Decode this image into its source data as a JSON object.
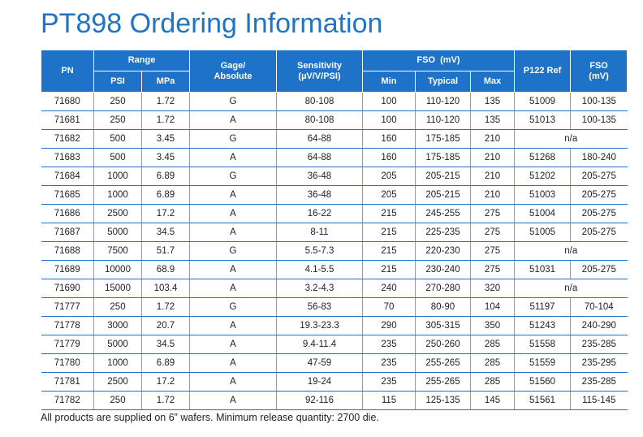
{
  "title": "PT898 Ordering Information",
  "headers": {
    "pn": "PN",
    "range": "Range",
    "psi": "PSI",
    "mpa": "MPa",
    "gage_line1": "Gage/",
    "gage_line2": "Absolute",
    "sens_line1": "Sensitivity",
    "sens_line2": "(µV/V/PSI)",
    "fso_group": "FSO  (mV)",
    "min": "Min",
    "typical": "Typical",
    "max": "Max",
    "p122": "P122 Ref",
    "fso_line1": "FSO",
    "fso_line2": "(mV)"
  },
  "rows": [
    {
      "pn": "71680",
      "psi": "250",
      "mpa": "1.72",
      "ga": "G",
      "sens": "80-108",
      "min": "100",
      "typ": "110-120",
      "max": "135",
      "ref": "51009",
      "fso": "100-135"
    },
    {
      "pn": "71681",
      "psi": "250",
      "mpa": "1.72",
      "ga": "A",
      "sens": "80-108",
      "min": "100",
      "typ": "110-120",
      "max": "135",
      "ref": "51013",
      "fso": "100-135"
    },
    {
      "pn": "71682",
      "psi": "500",
      "mpa": "3.45",
      "ga": "G",
      "sens": "64-88",
      "min": "160",
      "typ": "175-185",
      "max": "210",
      "na": "n/a"
    },
    {
      "pn": "71683",
      "psi": "500",
      "mpa": "3.45",
      "ga": "A",
      "sens": "64-88",
      "min": "160",
      "typ": "175-185",
      "max": "210",
      "ref": "51268",
      "fso": "180-240"
    },
    {
      "pn": "71684",
      "psi": "1000",
      "mpa": "6.89",
      "ga": "G",
      "sens": "36-48",
      "min": "205",
      "typ": "205-215",
      "max": "210",
      "ref": "51202",
      "fso": "205-275"
    },
    {
      "pn": "71685",
      "psi": "1000",
      "mpa": "6.89",
      "ga": "A",
      "sens": "36-48",
      "min": "205",
      "typ": "205-215",
      "max": "210",
      "ref": "51003",
      "fso": "205-275"
    },
    {
      "pn": "71686",
      "psi": "2500",
      "mpa": "17.2",
      "ga": "A",
      "sens": "16-22",
      "min": "215",
      "typ": "245-255",
      "max": "275",
      "ref": "51004",
      "fso": "205-275"
    },
    {
      "pn": "71687",
      "psi": "5000",
      "mpa": "34.5",
      "ga": "A",
      "sens": "8-11",
      "min": "215",
      "typ": "225-235",
      "max": "275",
      "ref": "51005",
      "fso": "205-275"
    },
    {
      "pn": "71688",
      "psi": "7500",
      "mpa": "51.7",
      "ga": "G",
      "sens": "5.5-7.3",
      "min": "215",
      "typ": "220-230",
      "max": "275",
      "na": "n/a"
    },
    {
      "pn": "71689",
      "psi": "10000",
      "mpa": "68.9",
      "ga": "A",
      "sens": "4.1-5.5",
      "min": "215",
      "typ": "230-240",
      "max": "275",
      "ref": "51031",
      "fso": "205-275"
    },
    {
      "pn": "71690",
      "psi": "15000",
      "mpa": "103.4",
      "ga": "A",
      "sens": "3.2-4.3",
      "min": "240",
      "typ": "270-280",
      "max": "320",
      "na": "n/a"
    },
    {
      "pn": "71777",
      "psi": "250",
      "mpa": "1.72",
      "ga": "G",
      "sens": "56-83",
      "min": "70",
      "typ": "80-90",
      "max": "104",
      "ref": "51197",
      "fso": "70-104"
    },
    {
      "pn": "71778",
      "psi": "3000",
      "mpa": "20.7",
      "ga": "A",
      "sens": "19.3-23.3",
      "min": "290",
      "typ": "305-315",
      "max": "350",
      "ref": "51243",
      "fso": "240-290"
    },
    {
      "pn": "71779",
      "psi": "5000",
      "mpa": "34.5",
      "ga": "A",
      "sens": "9.4-11.4",
      "min": "235",
      "typ": "250-260",
      "max": "285",
      "ref": "51558",
      "fso": "235-285"
    },
    {
      "pn": "71780",
      "psi": "1000",
      "mpa": "6.89",
      "ga": "A",
      "sens": "47-59",
      "min": "235",
      "typ": "255-265",
      "max": "285",
      "ref": "51559",
      "fso": "235-295"
    },
    {
      "pn": "71781",
      "psi": "2500",
      "mpa": "17.2",
      "ga": "A",
      "sens": "19-24",
      "min": "235",
      "typ": "255-265",
      "max": "285",
      "ref": "51560",
      "fso": "235-285"
    },
    {
      "pn": "71782",
      "psi": "250",
      "mpa": "1.72",
      "ga": "A",
      "sens": "92-116",
      "min": "115",
      "typ": "125-135",
      "max": "145",
      "ref": "51561",
      "fso": "115-145"
    }
  ],
  "footnote": "All products are supplied on 6” wafers. Minimum release quantity: 2700 die.",
  "colors": {
    "accent": "#1e72c8",
    "title": "#1f74c4"
  }
}
